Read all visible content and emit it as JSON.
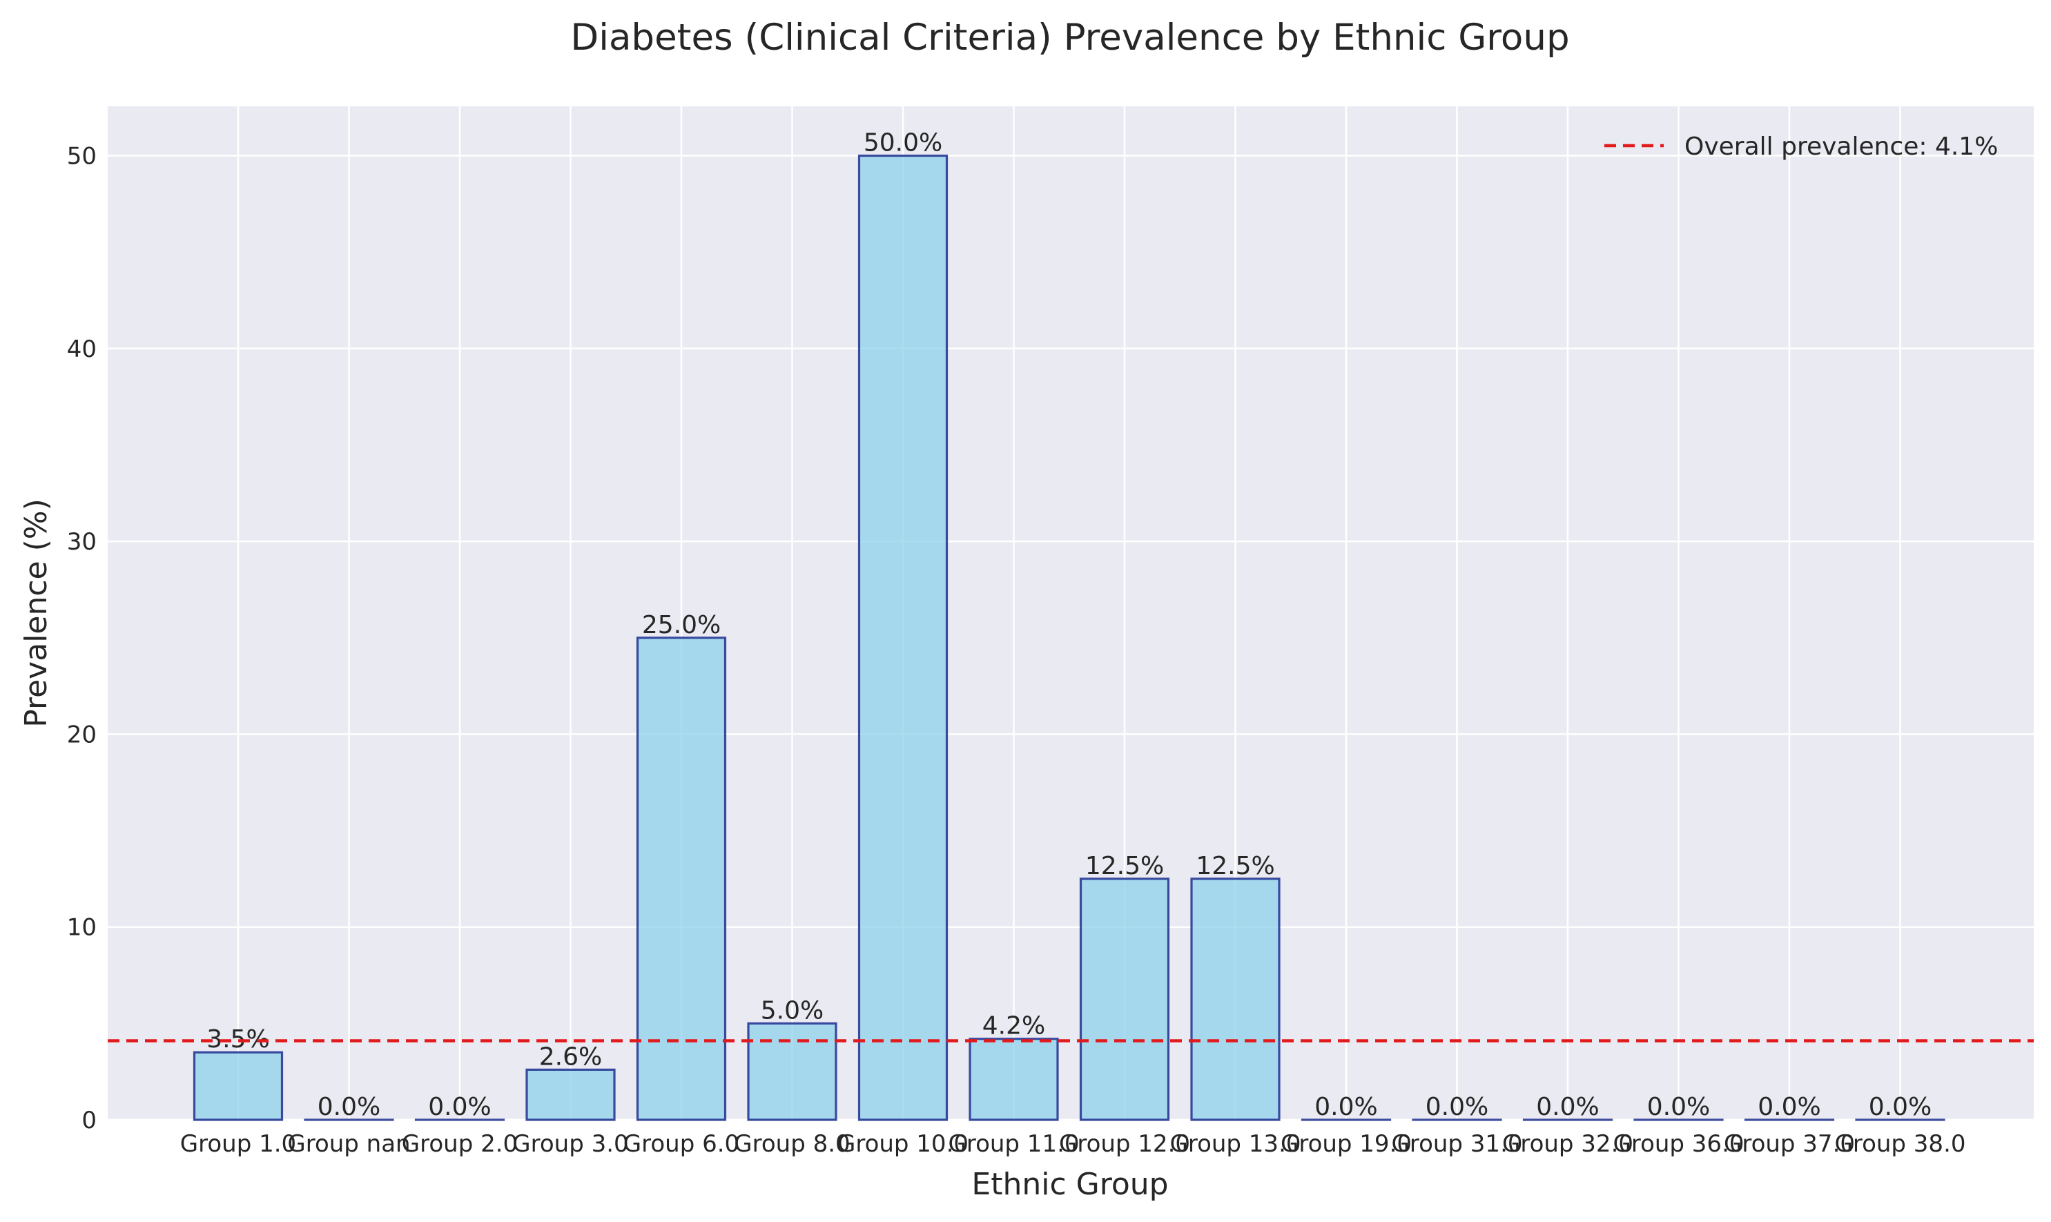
{
  "chart_data": {
    "type": "bar",
    "title": "Diabetes (Clinical Criteria) Prevalence by Ethnic Group",
    "xlabel": "Ethnic Group",
    "ylabel": "Prevalence (%)",
    "categories": [
      "Group 1.0",
      "Group nan",
      "Group 2.0",
      "Group 3.0",
      "Group 6.0",
      "Group 8.0",
      "Group 10.0",
      "Group 11.0",
      "Group 12.0",
      "Group 13.0",
      "Group 19.0",
      "Group 31.0",
      "Group 32.0",
      "Group 36.0",
      "Group 37.0",
      "Group 38.0"
    ],
    "values": [
      3.5,
      0.0,
      0.0,
      2.6,
      25.0,
      5.0,
      50.0,
      4.2,
      12.5,
      12.5,
      0.0,
      0.0,
      0.0,
      0.0,
      0.0,
      0.0
    ],
    "value_labels": [
      "3.5%",
      "0.0%",
      "0.0%",
      "2.6%",
      "25.0%",
      "5.0%",
      "50.0%",
      "4.2%",
      "12.5%",
      "12.5%",
      "0.0%",
      "0.0%",
      "0.0%",
      "0.0%",
      "0.0%",
      "0.0%"
    ],
    "ylim": [
      0,
      52.5
    ],
    "yticks": [
      0,
      10,
      20,
      30,
      40,
      50
    ],
    "reference_line": {
      "value": 4.1,
      "label": "Overall prevalence: 4.1%",
      "color": "#e31a1c",
      "style": "dashed"
    },
    "legend_position": "top-right",
    "grid": true,
    "colors": {
      "bar_fill": "#87ceeb",
      "bar_edge": "#1f2f8f",
      "plot_bg": "#eaeaf2",
      "grid": "#ffffff"
    }
  }
}
